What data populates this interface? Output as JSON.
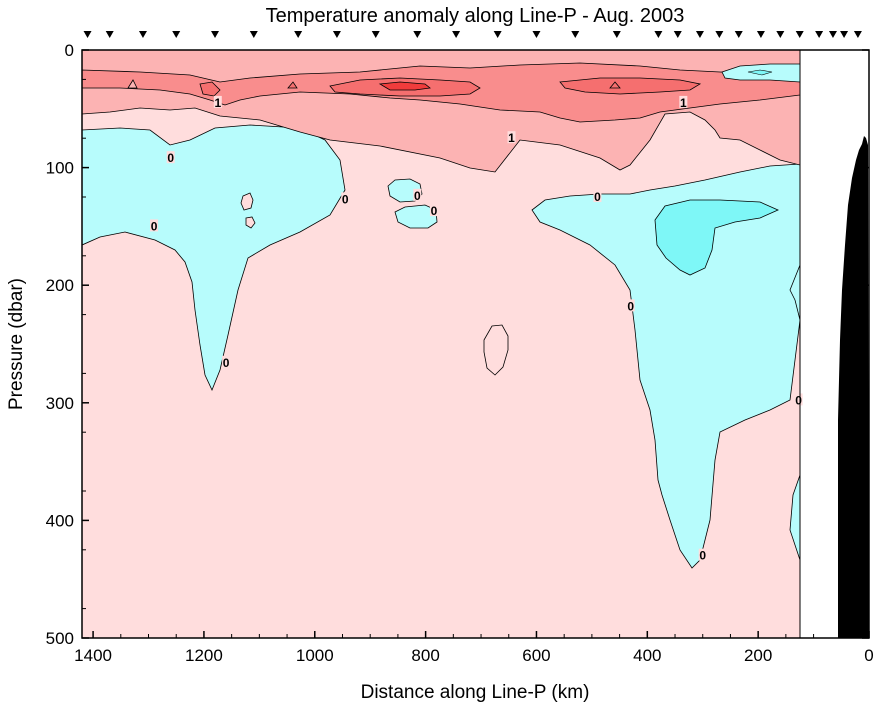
{
  "chart_data": {
    "type": "contour",
    "title": "Temperature anomaly along Line-P - Aug. 2003",
    "xlabel": "Distance along Line-P (km)",
    "ylabel": "Pressure (dbar)",
    "xlim": [
      1420,
      0
    ],
    "ylim": [
      0,
      500
    ],
    "x_ticks": [
      1400,
      1200,
      1000,
      800,
      600,
      400,
      200,
      0
    ],
    "y_ticks": [
      0,
      100,
      200,
      300,
      400,
      500
    ],
    "x_tick_labels": [
      "1400",
      "1200",
      "1000",
      "800",
      "600",
      "400",
      "200",
      "0"
    ],
    "y_tick_labels": [
      "0",
      "100",
      "200",
      "300",
      "400",
      "500"
    ],
    "data_extent_x": [
      1420,
      125
    ],
    "station_positions_km": [
      1410,
      1370,
      1310,
      1250,
      1180,
      1110,
      1030,
      960,
      890,
      815,
      745,
      670,
      600,
      530,
      455,
      380,
      345,
      305,
      270,
      235,
      195,
      160,
      125,
      90,
      65,
      45,
      20
    ],
    "contour_levels": [
      0,
      1,
      2,
      3
    ],
    "contour_labels": [
      {
        "text": "0",
        "x": 1260,
        "y": 92
      },
      {
        "text": "0",
        "x": 1290,
        "y": 150
      },
      {
        "text": "0",
        "x": 945,
        "y": 127
      },
      {
        "text": "0",
        "x": 815,
        "y": 124
      },
      {
        "text": "0",
        "x": 785,
        "y": 137
      },
      {
        "text": "0",
        "x": 1160,
        "y": 266
      },
      {
        "text": "0",
        "x": 490,
        "y": 125
      },
      {
        "text": "0",
        "x": 430,
        "y": 218
      },
      {
        "text": "0",
        "x": 300,
        "y": 430
      },
      {
        "text": "0",
        "x": 127,
        "y": 298
      },
      {
        "text": "1",
        "x": 1175,
        "y": 45
      },
      {
        "text": "1",
        "x": 645,
        "y": 75
      },
      {
        "text": "1",
        "x": 335,
        "y": 45
      }
    ],
    "regions": [
      {
        "anomaly": "0 to 1",
        "color": "#ffdddd"
      },
      {
        "anomaly": "-1 to 0",
        "color": "#b7fcfc"
      },
      {
        "anomaly": "1 to 2",
        "color": "#fcb3b3"
      },
      {
        "anomaly": "2 to 3",
        "color": "#f98d8d"
      },
      {
        "anomaly": "3 to 4",
        "color": "#f56f6f"
      },
      {
        "anomaly": "-2 to -1",
        "color": "#7ef7f7"
      }
    ],
    "bathymetry": {
      "color": "#000000",
      "x_range_km": [
        55,
        0
      ]
    },
    "grid": false,
    "legend": "none"
  }
}
